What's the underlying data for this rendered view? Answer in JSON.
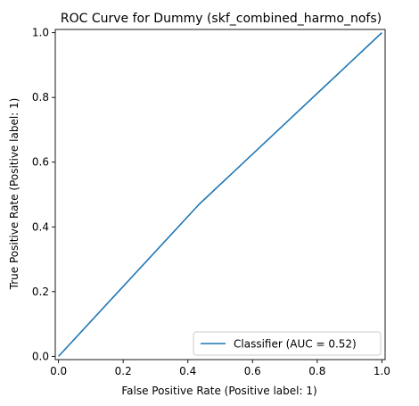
{
  "chart_data": {
    "type": "line",
    "title": "ROC Curve for Dummy (skf_combined_harmo_nofs)",
    "xlabel": "False Positive Rate (Positive label: 1)",
    "ylabel": "True Positive Rate (Positive label: 1)",
    "xlim": [
      -0.01,
      1.01
    ],
    "ylim": [
      -0.01,
      1.01
    ],
    "x_ticks": [
      0.0,
      0.2,
      0.4,
      0.6,
      0.8,
      1.0
    ],
    "y_ticks": [
      0.0,
      0.2,
      0.4,
      0.6,
      0.8,
      1.0
    ],
    "x_tick_labels": [
      "0.0",
      "0.2",
      "0.4",
      "0.6",
      "0.8",
      "1.0"
    ],
    "y_tick_labels": [
      "0.0",
      "0.2",
      "0.4",
      "0.6",
      "0.8",
      "1.0"
    ],
    "grid": false,
    "legend_position": "bottom-right",
    "series": [
      {
        "name": "Classifier (AUC = 0.52)",
        "color": "#1f77b4",
        "x": [
          0.0,
          0.435,
          1.0
        ],
        "y": [
          0.0,
          0.47,
          1.0
        ]
      }
    ]
  }
}
